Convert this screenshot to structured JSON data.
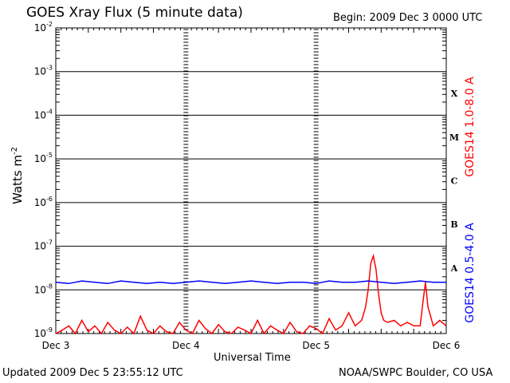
{
  "page": {
    "title": "GOES Xray Flux (5 minute data)",
    "begin": "Begin:  2009 Dec 3 0000 UTC",
    "updated": "Updated 2009 Dec  5 23:55:12 UTC",
    "credit": "NOAA/SWPC Boulder, CO USA"
  },
  "chart_data": {
    "type": "line",
    "title": "GOES Xray Flux (5 minute data)",
    "xlabel": "Universal Time",
    "ylabel": "Watts m",
    "ylabel_sup": "-2",
    "yscale": "log",
    "ylim": [
      1e-09,
      0.01
    ],
    "grid": true,
    "x_ticks": [
      "Dec 3",
      "Dec 4",
      "Dec 5",
      "Dec 6"
    ],
    "y_ticks": [
      {
        "base": "10",
        "exp": "-9",
        "value": 1e-09
      },
      {
        "base": "10",
        "exp": "-8",
        "value": 1e-08
      },
      {
        "base": "10",
        "exp": "-7",
        "value": 1e-07
      },
      {
        "base": "10",
        "exp": "-6",
        "value": 1e-06
      },
      {
        "base": "10",
        "exp": "-5",
        "value": 1e-05
      },
      {
        "base": "10",
        "exp": "-4",
        "value": 0.0001
      },
      {
        "base": "10",
        "exp": "-3",
        "value": 0.001
      },
      {
        "base": "10",
        "exp": "-2",
        "value": 0.01
      }
    ],
    "flare_classes": [
      {
        "label": "A",
        "value": 1e-08
      },
      {
        "label": "B",
        "value": 1e-07
      },
      {
        "label": "C",
        "value": 1e-06
      },
      {
        "label": "M",
        "value": 1e-05
      },
      {
        "label": "X",
        "value": 0.0001
      }
    ],
    "series": [
      {
        "name": "GOES14 1.0-8.0 A",
        "color": "#ff0000",
        "x_days": [
          0.0,
          0.05,
          0.1,
          0.15,
          0.2,
          0.25,
          0.3,
          0.35,
          0.4,
          0.45,
          0.5,
          0.55,
          0.6,
          0.65,
          0.7,
          0.75,
          0.8,
          0.85,
          0.9,
          0.95,
          1.0,
          1.05,
          1.1,
          1.15,
          1.2,
          1.25,
          1.3,
          1.35,
          1.4,
          1.45,
          1.5,
          1.55,
          1.6,
          1.65,
          1.7,
          1.75,
          1.8,
          1.85,
          1.9,
          1.95,
          2.0,
          2.05,
          2.1,
          2.15,
          2.2,
          2.25,
          2.3,
          2.35,
          2.38,
          2.4,
          2.42,
          2.44,
          2.46,
          2.48,
          2.5,
          2.52,
          2.55,
          2.6,
          2.65,
          2.7,
          2.75,
          2.8,
          2.82,
          2.84,
          2.86,
          2.88,
          2.9,
          2.95,
          3.0
        ],
        "values": [
          1e-09,
          1.2e-09,
          1.5e-09,
          1e-09,
          2e-09,
          1.1e-09,
          1.5e-09,
          1e-09,
          1.8e-09,
          1.2e-09,
          1e-09,
          1.4e-09,
          1e-09,
          2.5e-09,
          1.2e-09,
          1e-09,
          1.5e-09,
          1.1e-09,
          1e-09,
          1.8e-09,
          1.2e-09,
          1e-09,
          2e-09,
          1.3e-09,
          1e-09,
          1.6e-09,
          1.1e-09,
          1e-09,
          1.4e-09,
          1.2e-09,
          1e-09,
          2e-09,
          1e-09,
          1.5e-09,
          1.2e-09,
          1e-09,
          1.8e-09,
          1.1e-09,
          1e-09,
          1.5e-09,
          1.3e-09,
          1e-09,
          2.2e-09,
          1.2e-09,
          1.5e-09,
          3e-09,
          1.5e-09,
          2e-09,
          4e-09,
          1e-08,
          4e-08,
          6e-08,
          3e-08,
          8e-09,
          3e-09,
          2e-09,
          1.8e-09,
          2e-09,
          1.5e-09,
          1.8e-09,
          1.5e-09,
          1.5e-09,
          5e-09,
          1.5e-08,
          4e-09,
          2.5e-09,
          1.5e-09,
          2e-09,
          1.5e-09
        ]
      },
      {
        "name": "GOES14 0.5-4.0 A",
        "color": "#0000ff",
        "x_days": [
          0.0,
          0.1,
          0.2,
          0.3,
          0.4,
          0.5,
          0.6,
          0.7,
          0.8,
          0.9,
          1.0,
          1.1,
          1.2,
          1.3,
          1.4,
          1.5,
          1.6,
          1.7,
          1.8,
          1.9,
          2.0,
          2.1,
          2.2,
          2.3,
          2.4,
          2.5,
          2.6,
          2.7,
          2.8,
          2.9,
          3.0
        ],
        "values": [
          1.5e-08,
          1.4e-08,
          1.6e-08,
          1.5e-08,
          1.4e-08,
          1.6e-08,
          1.5e-08,
          1.4e-08,
          1.5e-08,
          1.4e-08,
          1.5e-08,
          1.6e-08,
          1.5e-08,
          1.4e-08,
          1.5e-08,
          1.6e-08,
          1.5e-08,
          1.4e-08,
          1.5e-08,
          1.5e-08,
          1.4e-08,
          1.6e-08,
          1.5e-08,
          1.5e-08,
          1.6e-08,
          1.5e-08,
          1.4e-08,
          1.5e-08,
          1.6e-08,
          1.5e-08,
          1.5e-08
        ]
      }
    ]
  }
}
